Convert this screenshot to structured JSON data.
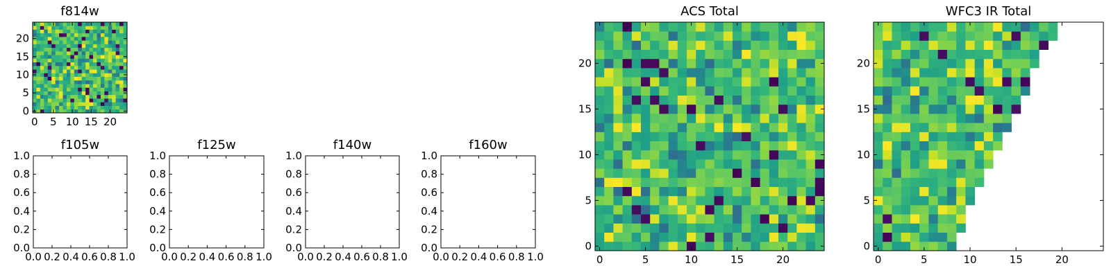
{
  "chart_data": [
    {
      "id": "f814w",
      "type": "heatmap",
      "title": "f814w",
      "colormap": "viridis",
      "grid_size": 25,
      "xlim": [
        -0.5,
        24.5
      ],
      "ylim": [
        -0.5,
        24.5
      ],
      "x_ticks": [
        0,
        5,
        10,
        15,
        20
      ],
      "y_ticks": [
        0,
        5,
        10,
        15,
        20
      ],
      "mask": "none"
    },
    {
      "id": "f105w",
      "type": "heatmap",
      "title": "f105w",
      "xlim": [
        0,
        1
      ],
      "ylim": [
        0,
        1
      ],
      "x_ticks": [
        "0.0",
        "0.2",
        "0.4",
        "0.6",
        "0.8",
        "1.0"
      ],
      "y_ticks": [
        "0.0",
        "0.2",
        "0.4",
        "0.6",
        "0.8",
        "1.0"
      ],
      "empty": true
    },
    {
      "id": "f125w",
      "type": "heatmap",
      "title": "f125w",
      "xlim": [
        0,
        1
      ],
      "ylim": [
        0,
        1
      ],
      "x_ticks": [
        "0.0",
        "0.2",
        "0.4",
        "0.6",
        "0.8",
        "1.0"
      ],
      "y_ticks": [
        "0.0",
        "0.2",
        "0.4",
        "0.6",
        "0.8",
        "1.0"
      ],
      "empty": true
    },
    {
      "id": "f140w",
      "type": "heatmap",
      "title": "f140w",
      "xlim": [
        0,
        1
      ],
      "ylim": [
        0,
        1
      ],
      "x_ticks": [
        "0.0",
        "0.2",
        "0.4",
        "0.6",
        "0.8",
        "1.0"
      ],
      "y_ticks": [
        "0.0",
        "0.2",
        "0.4",
        "0.6",
        "0.8",
        "1.0"
      ],
      "empty": true
    },
    {
      "id": "f160w",
      "type": "heatmap",
      "title": "f160w",
      "xlim": [
        0,
        1
      ],
      "ylim": [
        0,
        1
      ],
      "x_ticks": [
        "0.0",
        "0.2",
        "0.4",
        "0.6",
        "0.8",
        "1.0"
      ],
      "y_ticks": [
        "0.0",
        "0.2",
        "0.4",
        "0.6",
        "0.8",
        "1.0"
      ],
      "empty": true
    },
    {
      "id": "acs_total",
      "type": "heatmap",
      "title": "ACS Total",
      "colormap": "viridis",
      "grid_size": 25,
      "xlim": [
        -0.5,
        24.5
      ],
      "ylim": [
        -0.5,
        24.5
      ],
      "x_ticks": [
        0,
        5,
        10,
        15,
        20
      ],
      "y_ticks": [
        0,
        5,
        10,
        15,
        20
      ],
      "mask": "none"
    },
    {
      "id": "wfc3_ir_total",
      "type": "heatmap",
      "title": "WFC3 IR Total",
      "colormap": "viridis",
      "grid_size": 25,
      "xlim": [
        -0.5,
        24.5
      ],
      "ylim": [
        -0.5,
        24.5
      ],
      "x_ticks": [
        0,
        5,
        10,
        15,
        20
      ],
      "y_ticks": [
        0,
        5,
        10,
        15,
        20
      ],
      "mask": "upper-right triangle blank"
    }
  ]
}
